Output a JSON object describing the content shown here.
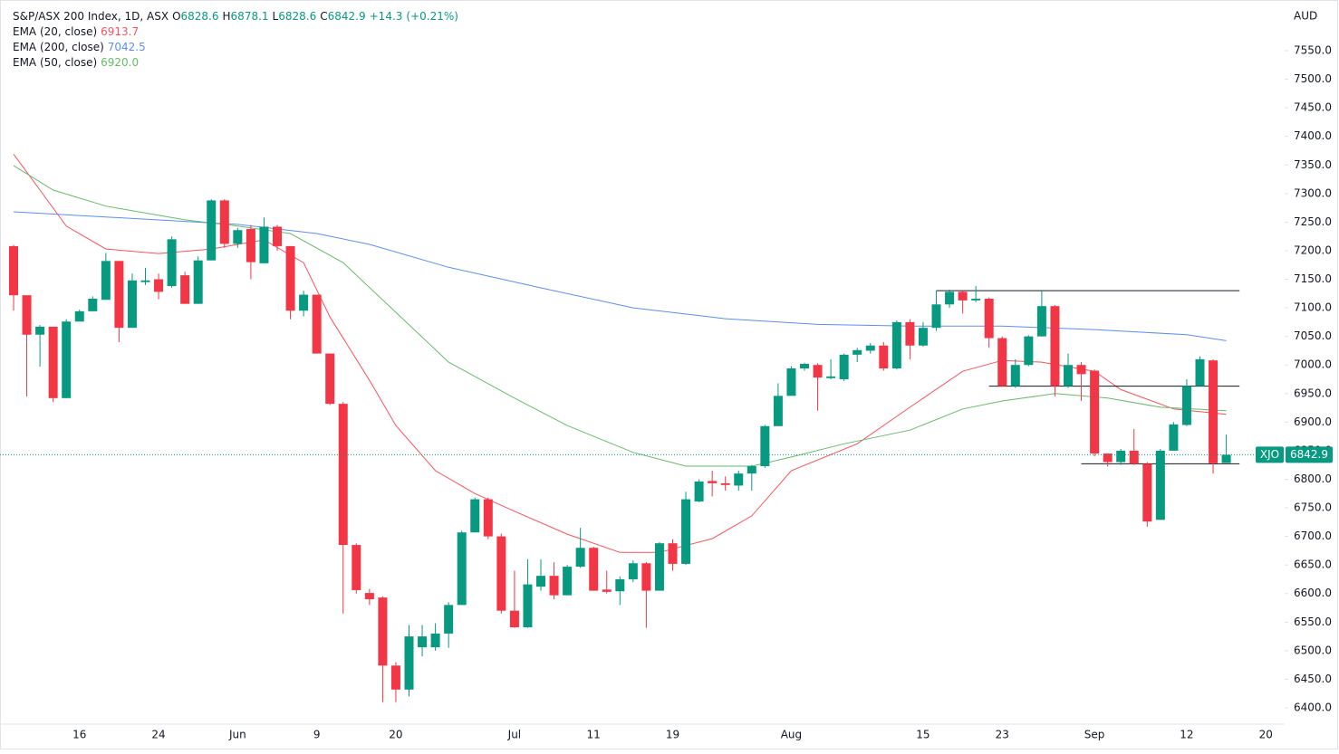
{
  "chart_data": {
    "type": "candlestick",
    "title": "S&P/ASX 200 Index, 1D, ASX",
    "ohlc_labels": [
      "O",
      "H",
      "L",
      "C"
    ],
    "change": {
      "value": 14.3,
      "label": "+14.3"
    },
    "change_pct": {
      "value": 0.21,
      "label": "(+0.21%)"
    },
    "currency": "AUD",
    "ticker": "XJO",
    "up_color": "#089981",
    "down_color": "#f23645",
    "categories": [
      null,
      null,
      null,
      null,
      null,
      "16",
      null,
      null,
      null,
      null,
      null,
      "24",
      null,
      null,
      null,
      null,
      null,
      "Jun",
      null,
      null,
      null,
      null,
      null,
      "9",
      null,
      null,
      null,
      null,
      null,
      "20",
      null,
      null,
      null,
      null,
      null,
      null,
      null,
      null,
      "Jul",
      null,
      null,
      null,
      null,
      null,
      "11",
      null,
      null,
      null,
      null,
      null,
      "19",
      null,
      null,
      null,
      null,
      null,
      null,
      null,
      null,
      "Aug",
      null,
      null,
      null,
      null,
      null,
      null,
      null,
      null,
      null,
      "15",
      null,
      null,
      null,
      null,
      null,
      "23",
      null,
      null,
      null,
      null,
      null,
      null,
      "Sep",
      null,
      null,
      null,
      null,
      null,
      null,
      "12",
      null,
      null,
      null,
      null,
      null,
      "20",
      null
    ],
    "series": [
      {
        "name": "S&P/ASX 200 Index",
        "open": [
          7208,
          7122,
          7053,
          7067,
          6942,
          7076,
          7094,
          7114,
          7182,
          7065,
          7145,
          7150,
          7138,
          7157,
          7107,
          7183,
          7288,
          7212,
          7238,
          7178,
          7242,
          7208,
          7095,
          7123,
          7020,
          6932,
          6685,
          6601,
          6593,
          6474,
          6432,
          6506,
          6506,
          6530,
          6580,
          6707,
          6765,
          6700,
          6570,
          6541,
          6612,
          6631,
          6597,
          6647,
          6680,
          6607,
          6604,
          6625,
          6653,
          6605,
          6688,
          6652,
          6761,
          6797,
          6793,
          6789,
          6810,
          6823,
          6893,
          6946,
          6994,
          7000,
          6977,
          6975,
          7018,
          7025,
          7034,
          6994,
          7075,
          7034,
          7065,
          7106,
          7128,
          7113,
          7116,
          7047,
          6963,
          7000,
          7050,
          7103,
          6963,
          7000,
          6990,
          6845,
          6830,
          6850,
          6827,
          6729,
          6850,
          6895,
          6963,
          7008,
          6828.6
        ],
        "high": [
          7210,
          7122,
          7070,
          7067,
          7080,
          7097,
          7120,
          7196,
          7182,
          7160,
          7170,
          7160,
          7225,
          7163,
          7190,
          7290,
          7290,
          7240,
          7245,
          7258,
          7245,
          7208,
          7130,
          7123,
          7020,
          6935,
          6688,
          6608,
          6595,
          6480,
          6545,
          6545,
          6548,
          6585,
          6710,
          6768,
          6768,
          6705,
          6640,
          6660,
          6660,
          6655,
          6650,
          6715,
          6682,
          6640,
          6630,
          6658,
          6655,
          6690,
          6695,
          6778,
          6800,
          6815,
          6805,
          6815,
          6825,
          6895,
          6968,
          6998,
          7004,
          7003,
          7010,
          7020,
          7030,
          7038,
          7040,
          7078,
          7080,
          7075,
          7130,
          7132,
          7130,
          7138,
          7118,
          7050,
          7010,
          7052,
          7130,
          7105,
          7020,
          7005,
          6992,
          6845,
          6853,
          6888,
          6830,
          6853,
          6900,
          6975,
          7015,
          7010,
          6878.1
        ],
        "low": [
          7095,
          6945,
          6997,
          6935,
          6942,
          7076,
          7094,
          7114,
          7040,
          7065,
          7140,
          7115,
          7135,
          7107,
          7107,
          7183,
          7205,
          7205,
          7150,
          7178,
          7200,
          7080,
          7085,
          7020,
          6930,
          6565,
          6600,
          6580,
          6410,
          6410,
          6420,
          6490,
          6500,
          6505,
          6580,
          6707,
          6695,
          6565,
          6540,
          6540,
          6605,
          6590,
          6597,
          6645,
          6605,
          6600,
          6580,
          6620,
          6540,
          6605,
          6640,
          6650,
          6760,
          6770,
          6780,
          6780,
          6780,
          6820,
          6893,
          6946,
          6990,
          6920,
          6975,
          6972,
          7005,
          7020,
          6990,
          6992,
          7010,
          7032,
          7060,
          7100,
          7090,
          7110,
          7030,
          6962,
          6960,
          6998,
          7050,
          6945,
          6960,
          6937,
          6840,
          6822,
          6825,
          6825,
          6717,
          6729,
          6850,
          6893,
          6963,
          6810,
          6828.6
        ],
        "close": [
          7122,
          7053,
          7067,
          6942,
          7076,
          7094,
          7116,
          7182,
          7065,
          7148,
          7148,
          7128,
          7220,
          7107,
          7183,
          7288,
          7212,
          7236,
          7180,
          7242,
          7208,
          7095,
          7123,
          7020,
          6932,
          6685,
          6606,
          6590,
          6474,
          6432,
          6525,
          6525,
          6530,
          6580,
          6707,
          6765,
          6700,
          6570,
          6541,
          6616,
          6631,
          6597,
          6647,
          6680,
          6605,
          6603,
          6625,
          6653,
          6605,
          6688,
          6652,
          6765,
          6796,
          6793,
          6790,
          6810,
          6823,
          6893,
          6946,
          6994,
          7002,
          6978,
          6980,
          7018,
          7026,
          7034,
          6994,
          7075,
          7034,
          7065,
          7106,
          7128,
          7113,
          7116,
          7047,
          6963,
          7000,
          7050,
          7103,
          6963,
          7000,
          6984,
          6845,
          6830,
          6850,
          6827,
          6726,
          6850,
          6896,
          6963,
          7010,
          6828,
          6842.9
        ]
      }
    ],
    "lines": [
      {
        "name": "EMA (20, close)",
        "color": "#f7525f",
        "last": {
          "value": 6913.7,
          "label": "6913.7"
        },
        "x": [
          0,
          2,
          4,
          7,
          11,
          15,
          19,
          22,
          24,
          27,
          29,
          32,
          35,
          38,
          42,
          46,
          49,
          53,
          56,
          59,
          64,
          68,
          72,
          75,
          78,
          82,
          84,
          88,
          92
        ],
        "values": [
          7369,
          7306,
          7243,
          7203,
          7195,
          7203,
          7219,
          7179,
          7084,
          6973,
          6894,
          6815,
          6775,
          6744,
          6704,
          6672,
          6672,
          6696,
          6736,
          6815,
          6862,
          6926,
          6989,
          7008,
          7005,
          6989,
          6957,
          6923,
          6913.7
        ]
      },
      {
        "name": "EMA (200, close)",
        "color": "#5b8ff0",
        "last": {
          "value": 7042.5,
          "label": "7042.5"
        },
        "x": [
          0,
          17,
          23,
          27,
          33,
          40,
          47,
          54,
          61,
          68,
          75,
          82,
          89,
          92
        ],
        "values": [
          7268,
          7246,
          7230,
          7211,
          7171,
          7135,
          7100,
          7081,
          7071,
          7068,
          7068,
          7062,
          7053,
          7042.5
        ]
      },
      {
        "name": "EMA (50, close)",
        "color": "#66bb6a",
        "last": {
          "value": 6920,
          "label": "6920.0"
        },
        "x": [
          0,
          3,
          7,
          13,
          17,
          21,
          25,
          29,
          33,
          38,
          42,
          47,
          51,
          56,
          59,
          63,
          68,
          72,
          75,
          79,
          83,
          87,
          92
        ],
        "values": [
          7349,
          7306,
          7278,
          7254,
          7243,
          7230,
          7179,
          7092,
          7005,
          6942,
          6894,
          6847,
          6823,
          6823,
          6839,
          6862,
          6886,
          6923,
          6937,
          6950,
          6942,
          6926,
          6920
        ]
      }
    ],
    "levels": [
      {
        "value": 7130,
        "from": 70,
        "to": 93
      },
      {
        "value": 6963,
        "from": 74,
        "to": 93
      },
      {
        "value": 6827,
        "from": 81,
        "to": 93
      }
    ],
    "ylim": [
      6371.5,
      7638.7
    ],
    "yticks": [
      {
        "value": 6400,
        "label": "6400.0"
      },
      {
        "value": 6450,
        "label": "6450.0"
      },
      {
        "value": 6500,
        "label": "6500.0"
      },
      {
        "value": 6550,
        "label": "6550.0"
      },
      {
        "value": 6600,
        "label": "6600.0"
      },
      {
        "value": 6650,
        "label": "6650.0"
      },
      {
        "value": 6700,
        "label": "6700.0"
      },
      {
        "value": 6750,
        "label": "6750.0"
      },
      {
        "value": 6800,
        "label": "6800.0"
      },
      {
        "value": 6850,
        "label": "6850.0"
      },
      {
        "value": 6900,
        "label": "6900.0"
      },
      {
        "value": 6950,
        "label": "6950.0"
      },
      {
        "value": 7000,
        "label": "7000.0"
      },
      {
        "value": 7050,
        "label": "7050.0"
      },
      {
        "value": 7100,
        "label": "7100.0"
      },
      {
        "value": 7150,
        "label": "7150.0"
      },
      {
        "value": 7200,
        "label": "7200.0"
      },
      {
        "value": 7250,
        "label": "7250.0"
      },
      {
        "value": 7300,
        "label": "7300.0"
      },
      {
        "value": 7350,
        "label": "7350.0"
      },
      {
        "value": 7400,
        "label": "7400.0"
      },
      {
        "value": 7450,
        "label": "7450.0"
      },
      {
        "value": 7500,
        "label": "7500.0"
      },
      {
        "value": 7550,
        "label": "7550.0"
      }
    ],
    "grid": false
  }
}
